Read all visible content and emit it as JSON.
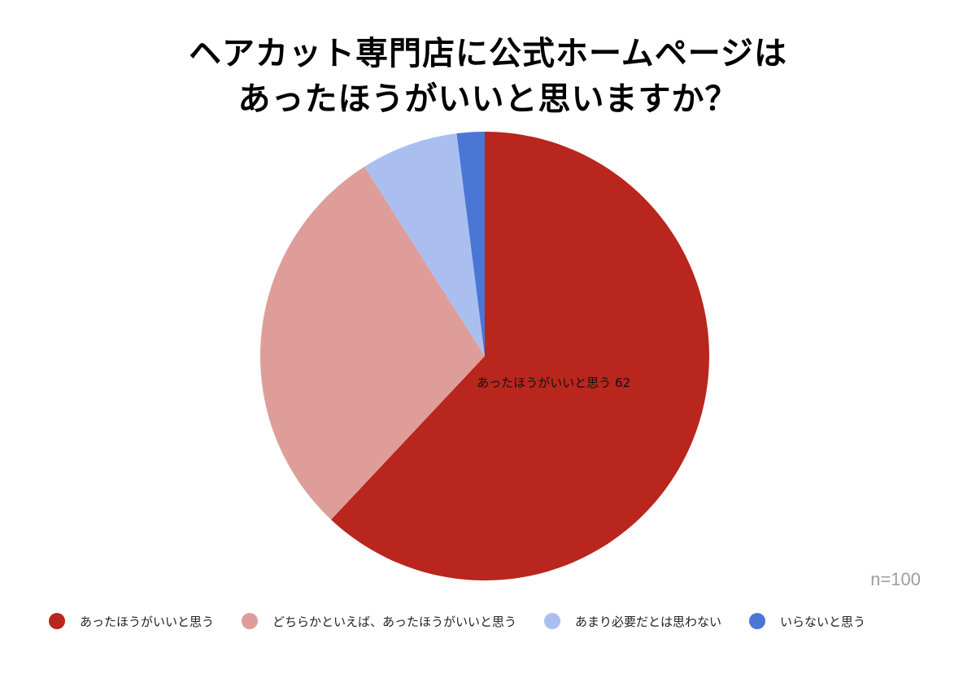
{
  "chart_data": {
    "type": "pie",
    "title_lines": [
      "ヘアカット専門店に公式ホームページは",
      "あったほうがいいと思いますか？"
    ],
    "sample_size_label": "n=100",
    "legend_placement": "bottom",
    "start_angle": "top, clockwise",
    "slices": [
      {
        "label": "あったほうがいいと思う",
        "value": 62,
        "color": "#b8261d",
        "data_label": "あったほうがいいと思う 62"
      },
      {
        "label": "どちらかといえば、あったほうがいいと思う",
        "value": 29,
        "color": "#df9d9a",
        "data_label": ""
      },
      {
        "label": "あまり必要だとは思わない",
        "value": 7,
        "color": "#aabff0",
        "data_label": ""
      },
      {
        "label": "いらないと思う",
        "value": 2,
        "color": "#4a77d4",
        "data_label": ""
      }
    ]
  }
}
